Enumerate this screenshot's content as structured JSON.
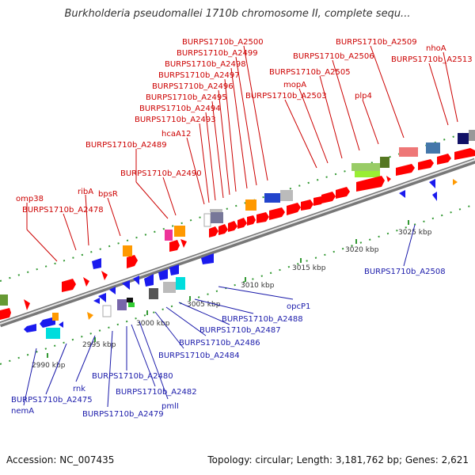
{
  "title": "Burkholderia pseudomallei 1710b chromosome II, complete sequ...",
  "accession": "Accession: NC_007435",
  "summary": "Topology: circular; Length: 3,181,762 bp; Genes: 2,621",
  "scale_labels": [
    "2990 kbp",
    "2995 kbp",
    "3000 kbp",
    "3005 kbp",
    "3010 kbp",
    "3015 kbp",
    "3020 kbp",
    "3025 kbp"
  ],
  "top_labels": [
    "BURPS1710b_A2500",
    "BURPS1710b_A2499",
    "BURPS1710b_A2498",
    "BURPS1710b_A2497",
    "BURPS1710b_A2496",
    "BURPS1710b_A2495",
    "BURPS1710b_A2494",
    "BURPS1710b_A2493",
    "hcaA12",
    "BURPS1710b_A2489",
    "BURPS1710b_A2490",
    "omp38",
    "BURPS1710b_A2478",
    "ribA",
    "bpsR",
    "BURPS1710b_A2509",
    "BURPS1710b_A2506",
    "nhoA",
    "BURPS1710b_A2513",
    "BURPS1710b_A2505",
    "mopA",
    "plp4",
    "BURPS1710b_A2503"
  ],
  "bottom_labels": [
    "BURPS1710b_A2508",
    "opcP1",
    "BURPS1710b_A2488",
    "BURPS1710b_A2487",
    "BURPS1710b_A2486",
    "BURPS1710b_A2484",
    "BURPS1710b_A2480",
    "BURPS1710b_A2482",
    "pmlI",
    "BURPS1710b_A2479",
    "rnk",
    "BURPS1710b_A2475",
    "nemA"
  ],
  "colors": {
    "forward": "#ff0000",
    "reverse": "#1a1aee",
    "leader_top": "#cc0000",
    "leader_bottom": "#1a1aaa",
    "backbone": "#999999",
    "tick": "#339933"
  }
}
